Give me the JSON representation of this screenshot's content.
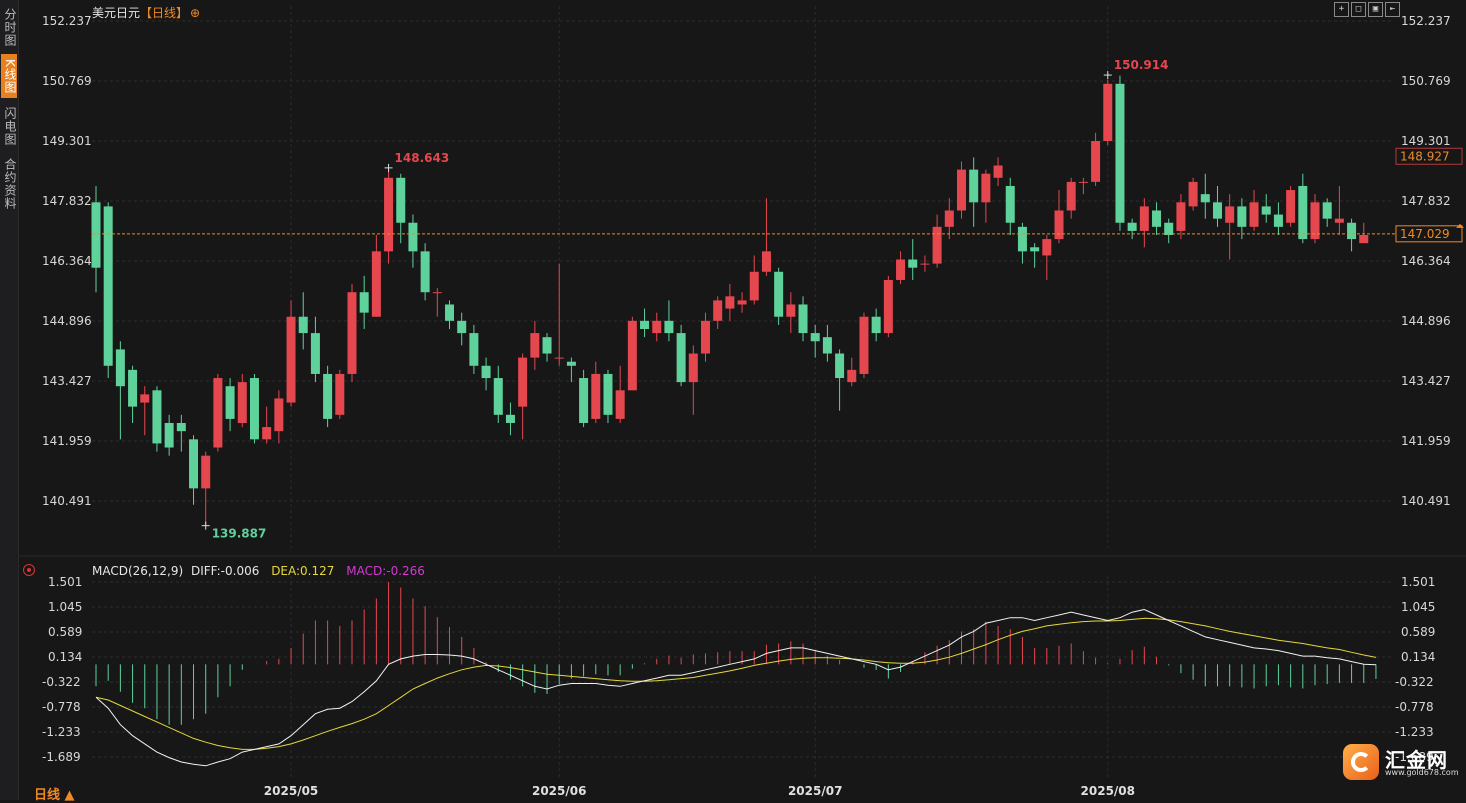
{
  "left_tabs": [
    {
      "label": "分时图",
      "active": false
    },
    {
      "label": "K线图",
      "active": true
    },
    {
      "label": "闪电图",
      "active": false
    },
    {
      "label": "合约资料",
      "active": false
    }
  ],
  "header": {
    "symbol": "美元日元",
    "period": "【日线】",
    "add_icon": "circle-plus-icon"
  },
  "toolbar": {
    "icons": [
      "crosshair-icon",
      "fit-icon",
      "fullscreen-icon",
      "back-icon"
    ]
  },
  "period_button": {
    "label": "日线",
    "icon": "triangle-up-icon"
  },
  "macd_header": {
    "params": "MACD(26,12,9)",
    "diff": "DIFF:-0.006",
    "dea": "DEA:0.127",
    "macd": "MACD:-0.266"
  },
  "logo": {
    "name": "汇金网",
    "url": "www.gold678.com"
  },
  "colors": {
    "up": "#e5474e",
    "down": "#5fd19b",
    "background": "#171718",
    "dif_line": "#f2f2f2",
    "dea_line": "#e5d73b",
    "macd_label": "#d03bd0",
    "current_price": "#f08a24"
  },
  "chart_data": [
    {
      "type": "candlestick",
      "title": "美元日元 日线",
      "y_ticks": [
        "152.237",
        "150.769",
        "149.301",
        "147.832",
        "146.364",
        "144.896",
        "143.427",
        "141.959",
        "140.491"
      ],
      "ylim": [
        139.6,
        152.5
      ],
      "x_labels": [
        "2025/05",
        "2025/06",
        "2025/07",
        "2025/08"
      ],
      "annotations": {
        "high_1": "148.643",
        "high_2": "150.914",
        "low": "139.887",
        "last_price": "148.927",
        "current_price": "147.029"
      },
      "current_price": 147.029,
      "candles": [
        [
          147.8,
          146.2,
          148.2,
          145.6
        ],
        [
          147.7,
          143.8,
          147.8,
          143.5
        ],
        [
          144.2,
          143.3,
          144.4,
          142.0
        ],
        [
          143.7,
          142.8,
          143.8,
          142.4
        ],
        [
          142.9,
          143.1,
          143.3,
          142.1
        ],
        [
          143.2,
          141.9,
          143.3,
          141.7
        ],
        [
          142.4,
          141.8,
          142.6,
          141.6
        ],
        [
          142.4,
          142.2,
          142.6,
          141.7
        ],
        [
          142.0,
          140.8,
          142.1,
          140.4
        ],
        [
          140.8,
          141.6,
          141.7,
          139.9
        ],
        [
          141.8,
          143.5,
          143.6,
          141.7
        ],
        [
          143.3,
          142.5,
          143.5,
          142.2
        ],
        [
          142.4,
          143.4,
          143.6,
          142.3
        ],
        [
          143.5,
          142.0,
          143.6,
          141.9
        ],
        [
          142.0,
          142.3,
          142.8,
          141.9
        ],
        [
          142.2,
          143.0,
          143.2,
          141.9
        ],
        [
          142.9,
          145.0,
          145.4,
          142.8
        ],
        [
          145.0,
          144.6,
          145.6,
          144.2
        ],
        [
          144.6,
          143.6,
          145.0,
          143.4
        ],
        [
          143.6,
          142.5,
          143.8,
          142.3
        ],
        [
          142.6,
          143.6,
          143.7,
          142.5
        ],
        [
          143.6,
          145.6,
          145.8,
          143.4
        ],
        [
          145.6,
          145.1,
          146.0,
          144.7
        ],
        [
          145.0,
          146.6,
          147.0,
          145.0
        ],
        [
          146.6,
          148.4,
          148.6,
          146.3
        ],
        [
          148.4,
          147.3,
          148.5,
          146.8
        ],
        [
          147.3,
          146.6,
          147.5,
          146.2
        ],
        [
          146.6,
          145.6,
          146.8,
          145.4
        ],
        [
          145.6,
          145.6,
          145.7,
          145.0
        ],
        [
          145.3,
          144.9,
          145.4,
          144.7
        ],
        [
          144.9,
          144.6,
          145.1,
          144.3
        ],
        [
          144.6,
          143.8,
          144.8,
          143.6
        ],
        [
          143.8,
          143.5,
          144.0,
          143.2
        ],
        [
          143.5,
          142.6,
          143.8,
          142.4
        ],
        [
          142.6,
          142.4,
          142.9,
          142.1
        ],
        [
          142.8,
          144.0,
          144.1,
          142.0
        ],
        [
          144.0,
          144.6,
          144.9,
          143.7
        ],
        [
          144.5,
          144.1,
          144.6,
          143.9
        ],
        [
          144.0,
          144.0,
          146.3,
          143.8
        ],
        [
          143.9,
          143.8,
          144.0,
          143.4
        ],
        [
          143.5,
          142.4,
          143.7,
          142.3
        ],
        [
          142.5,
          143.6,
          143.9,
          142.4
        ],
        [
          143.6,
          142.6,
          143.7,
          142.4
        ],
        [
          142.5,
          143.2,
          143.8,
          142.4
        ],
        [
          143.2,
          144.9,
          145.0,
          143.2
        ],
        [
          144.9,
          144.7,
          145.2,
          144.5
        ],
        [
          144.6,
          144.9,
          145.1,
          144.4
        ],
        [
          144.9,
          144.6,
          145.4,
          144.4
        ],
        [
          144.6,
          143.4,
          144.8,
          143.3
        ],
        [
          143.4,
          144.1,
          144.3,
          142.6
        ],
        [
          144.1,
          144.9,
          145.1,
          143.9
        ],
        [
          144.9,
          145.4,
          145.5,
          144.7
        ],
        [
          145.2,
          145.5,
          145.8,
          144.9
        ],
        [
          145.3,
          145.4,
          145.6,
          145.1
        ],
        [
          145.4,
          146.1,
          146.5,
          145.3
        ],
        [
          146.1,
          146.6,
          147.9,
          146.0
        ],
        [
          146.1,
          145.0,
          146.2,
          144.8
        ],
        [
          145.0,
          145.3,
          145.6,
          144.6
        ],
        [
          145.3,
          144.6,
          145.5,
          144.4
        ],
        [
          144.6,
          144.4,
          144.8,
          144.0
        ],
        [
          144.5,
          144.1,
          144.8,
          143.9
        ],
        [
          144.1,
          143.5,
          144.2,
          142.7
        ],
        [
          143.4,
          143.7,
          144.0,
          143.3
        ],
        [
          143.6,
          145.0,
          145.1,
          143.5
        ],
        [
          145.0,
          144.6,
          145.2,
          144.4
        ],
        [
          144.6,
          145.9,
          146.0,
          144.5
        ],
        [
          145.9,
          146.4,
          146.6,
          145.8
        ],
        [
          146.4,
          146.2,
          146.9,
          145.9
        ],
        [
          146.3,
          146.3,
          146.5,
          146.1
        ],
        [
          146.3,
          147.2,
          147.5,
          146.2
        ],
        [
          147.2,
          147.6,
          147.9,
          146.9
        ],
        [
          147.6,
          148.6,
          148.8,
          147.4
        ],
        [
          148.6,
          147.8,
          148.9,
          147.2
        ],
        [
          147.8,
          148.5,
          148.6,
          147.3
        ],
        [
          148.4,
          148.7,
          148.9,
          148.2
        ],
        [
          148.2,
          147.3,
          148.4,
          147.0
        ],
        [
          147.2,
          146.6,
          147.3,
          146.3
        ],
        [
          146.7,
          146.6,
          146.8,
          146.2
        ],
        [
          146.5,
          146.9,
          147.0,
          145.9
        ],
        [
          146.9,
          147.6,
          148.1,
          146.8
        ],
        [
          147.6,
          148.3,
          148.4,
          147.4
        ],
        [
          148.3,
          148.3,
          148.4,
          148.0
        ],
        [
          148.3,
          149.3,
          149.5,
          148.2
        ],
        [
          149.3,
          150.7,
          150.8,
          149.2
        ],
        [
          150.7,
          147.3,
          150.9,
          147.1
        ],
        [
          147.3,
          147.1,
          147.4,
          146.9
        ],
        [
          147.1,
          147.7,
          147.9,
          146.7
        ],
        [
          147.6,
          147.2,
          147.8,
          147.0
        ],
        [
          147.3,
          147.0,
          147.4,
          146.8
        ],
        [
          147.1,
          147.8,
          148.0,
          146.9
        ],
        [
          147.7,
          148.3,
          148.4,
          147.6
        ],
        [
          148.0,
          147.8,
          148.5,
          147.4
        ],
        [
          147.8,
          147.4,
          148.2,
          147.2
        ],
        [
          147.3,
          147.7,
          148.0,
          146.4
        ],
        [
          147.7,
          147.2,
          147.9,
          146.9
        ],
        [
          147.2,
          147.8,
          148.1,
          147.1
        ],
        [
          147.7,
          147.5,
          148.0,
          147.3
        ],
        [
          147.5,
          147.2,
          147.8,
          147.0
        ],
        [
          147.3,
          148.1,
          148.2,
          147.2
        ],
        [
          148.2,
          146.9,
          148.5,
          146.8
        ],
        [
          146.9,
          147.8,
          148.0,
          146.8
        ],
        [
          147.8,
          147.4,
          147.9,
          147.2
        ],
        [
          147.3,
          147.4,
          148.2,
          147.0
        ],
        [
          147.3,
          146.9,
          147.4,
          146.6
        ],
        [
          146.8,
          147.0,
          147.3,
          146.8
        ]
      ]
    },
    {
      "type": "line",
      "title": "MACD(26,12,9)",
      "y_ticks": [
        "1.501",
        "1.045",
        "0.589",
        "0.134",
        "-0.322",
        "-0.778",
        "-1.233",
        "-1.689"
      ],
      "ylim": [
        -1.92,
        1.73
      ],
      "series": [
        {
          "name": "DIFF",
          "values": [
            -0.6,
            -0.8,
            -1.1,
            -1.3,
            -1.45,
            -1.6,
            -1.7,
            -1.78,
            -1.82,
            -1.85,
            -1.78,
            -1.72,
            -1.6,
            -1.55,
            -1.5,
            -1.45,
            -1.3,
            -1.1,
            -0.9,
            -0.82,
            -0.8,
            -0.68,
            -0.5,
            -0.3,
            0.0,
            0.1,
            0.15,
            0.18,
            0.18,
            0.17,
            0.15,
            0.1,
            0.0,
            -0.1,
            -0.2,
            -0.3,
            -0.4,
            -0.45,
            -0.38,
            -0.35,
            -0.35,
            -0.35,
            -0.38,
            -0.4,
            -0.35,
            -0.3,
            -0.25,
            -0.2,
            -0.2,
            -0.15,
            -0.1,
            -0.05,
            0.0,
            0.05,
            0.1,
            0.2,
            0.25,
            0.3,
            0.3,
            0.25,
            0.2,
            0.15,
            0.1,
            0.05,
            0.0,
            -0.1,
            -0.05,
            0.05,
            0.15,
            0.25,
            0.35,
            0.5,
            0.6,
            0.75,
            0.8,
            0.85,
            0.85,
            0.8,
            0.85,
            0.9,
            0.95,
            0.9,
            0.85,
            0.8,
            0.85,
            0.95,
            1.0,
            0.9,
            0.8,
            0.7,
            0.6,
            0.5,
            0.45,
            0.4,
            0.35,
            0.3,
            0.28,
            0.25,
            0.2,
            0.15,
            0.15,
            0.12,
            0.1,
            0.05,
            0.0,
            -0.006
          ]
        },
        {
          "name": "DEA",
          "values": [
            -0.6,
            -0.65,
            -0.75,
            -0.85,
            -0.95,
            -1.05,
            -1.15,
            -1.25,
            -1.35,
            -1.42,
            -1.48,
            -1.52,
            -1.55,
            -1.55,
            -1.53,
            -1.5,
            -1.45,
            -1.38,
            -1.3,
            -1.22,
            -1.15,
            -1.08,
            -1.0,
            -0.9,
            -0.75,
            -0.6,
            -0.45,
            -0.35,
            -0.25,
            -0.17,
            -0.1,
            -0.05,
            -0.02,
            -0.03,
            -0.06,
            -0.1,
            -0.14,
            -0.18,
            -0.2,
            -0.22,
            -0.24,
            -0.26,
            -0.28,
            -0.3,
            -0.31,
            -0.31,
            -0.3,
            -0.28,
            -0.26,
            -0.24,
            -0.2,
            -0.16,
            -0.12,
            -0.07,
            -0.02,
            0.02,
            0.06,
            0.09,
            0.11,
            0.12,
            0.12,
            0.11,
            0.1,
            0.08,
            0.05,
            0.03,
            0.02,
            0.02,
            0.04,
            0.08,
            0.13,
            0.2,
            0.28,
            0.36,
            0.45,
            0.53,
            0.6,
            0.65,
            0.7,
            0.73,
            0.76,
            0.78,
            0.79,
            0.79,
            0.8,
            0.82,
            0.84,
            0.83,
            0.81,
            0.78,
            0.74,
            0.7,
            0.65,
            0.6,
            0.56,
            0.52,
            0.48,
            0.44,
            0.41,
            0.38,
            0.34,
            0.3,
            0.27,
            0.22,
            0.17,
            0.127
          ]
        },
        {
          "name": "MACD",
          "values": [
            -0.4,
            -0.3,
            -0.5,
            -0.7,
            -0.8,
            -1.0,
            -1.1,
            -1.1,
            -1.0,
            -0.9,
            -0.6,
            -0.4,
            -0.1,
            0.0,
            0.06,
            0.1,
            0.3,
            0.56,
            0.8,
            0.8,
            0.7,
            0.8,
            1.0,
            1.2,
            1.5,
            1.4,
            1.2,
            1.06,
            0.86,
            0.68,
            0.5,
            0.3,
            0.04,
            -0.14,
            -0.28,
            -0.4,
            -0.52,
            -0.54,
            -0.36,
            -0.26,
            -0.22,
            -0.18,
            -0.2,
            -0.2,
            -0.08,
            0.02,
            0.1,
            0.16,
            0.12,
            0.18,
            0.2,
            0.22,
            0.24,
            0.24,
            0.24,
            0.36,
            0.38,
            0.42,
            0.38,
            0.26,
            0.16,
            0.08,
            0.0,
            -0.06,
            -0.1,
            -0.26,
            -0.14,
            0.06,
            0.22,
            0.34,
            0.44,
            0.6,
            0.64,
            0.78,
            0.7,
            0.64,
            0.5,
            0.3,
            0.3,
            0.34,
            0.38,
            0.24,
            0.12,
            0.02,
            0.1,
            0.26,
            0.32,
            0.14,
            -0.02,
            -0.16,
            -0.28,
            -0.4,
            -0.4,
            -0.4,
            -0.42,
            -0.44,
            -0.4,
            -0.38,
            -0.42,
            -0.44,
            -0.38,
            -0.36,
            -0.34,
            -0.34,
            -0.34,
            -0.266
          ]
        }
      ],
      "x_labels": [
        "2025/05",
        "2025/06",
        "2025/07",
        "2025/08"
      ]
    }
  ]
}
